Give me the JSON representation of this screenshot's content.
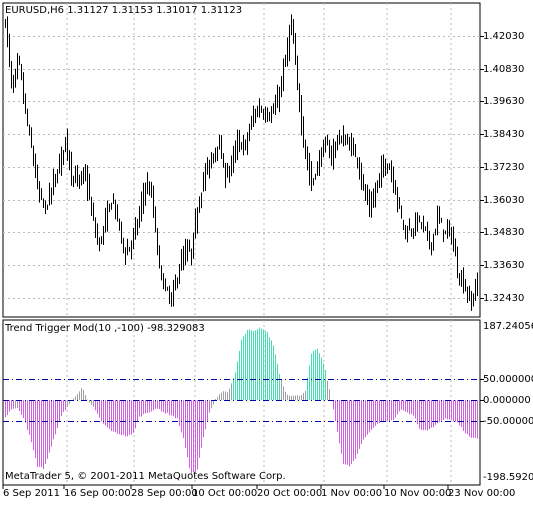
{
  "main_panel": {
    "title": "EURUSD,H6  1.31127 1.31153 1.31017 1.31123",
    "price_labels": [
      "1.42030",
      "1.40830",
      "1.39630",
      "1.38430",
      "1.37230",
      "1.36030",
      "1.34830",
      "1.33630",
      "1.32430"
    ],
    "price_range": [
      1.3173,
      1.4323
    ],
    "series_color": "#000000"
  },
  "indicator_panel": {
    "title": "Trend Trigger Mod(10 ,-100) -98.329083",
    "max_label": "187.240565",
    "level_labels": [
      "50.000000",
      "0.000000",
      "-50.000000"
    ],
    "min_label": "-198.592054",
    "range": [
      -198.592054,
      187.240565
    ],
    "levels": [
      50,
      0,
      -50
    ],
    "colors": {
      "above": "#40e0b0",
      "below": "#d060e0",
      "neutral": "#a0a0a0",
      "level_line": "#0000aa"
    }
  },
  "footer": {
    "copyright": "MetaTrader 5, © 2001-2011 MetaQuotes Software Corp."
  },
  "time_axis": {
    "labels": [
      "6 Sep 2011",
      "16 Sep 00:00",
      "28 Sep 00:00",
      "10 Oct 00:00",
      "20 Oct 00:00",
      "1 Nov 00:00",
      "10 Nov 00:00",
      "23 Nov 00:00"
    ]
  },
  "chart_data": [
    {
      "type": "ohlc",
      "title": "EURUSD,H6  1.31127 1.31153 1.31017 1.31123",
      "ylim": [
        1.3173,
        1.4323
      ],
      "y_ticks": [
        1.4203,
        1.4083,
        1.3963,
        1.3843,
        1.3723,
        1.3603,
        1.3483,
        1.3363,
        1.3243
      ],
      "x_tick_labels": [
        "6 Sep 2011",
        "16 Sep 00:00",
        "28 Sep 00:00",
        "10 Oct 00:00",
        "20 Oct 00:00",
        "1 Nov 00:00",
        "10 Nov 00:00",
        "23 Nov 00:00"
      ],
      "close_path": [
        1.426,
        1.4,
        1.412,
        1.392,
        1.378,
        1.362,
        1.357,
        1.365,
        1.372,
        1.383,
        1.369,
        1.367,
        1.37,
        1.355,
        1.343,
        1.352,
        1.361,
        1.352,
        1.34,
        1.345,
        1.353,
        1.366,
        1.362,
        1.338,
        1.327,
        1.324,
        1.334,
        1.341,
        1.341,
        1.359,
        1.37,
        1.375,
        1.382,
        1.369,
        1.373,
        1.382,
        1.379,
        1.389,
        1.394,
        1.392,
        1.391,
        1.397,
        1.41,
        1.425,
        1.4,
        1.379,
        1.366,
        1.373,
        1.381,
        1.376,
        1.383,
        1.382,
        1.38,
        1.375,
        1.362,
        1.357,
        1.367,
        1.374,
        1.371,
        1.36,
        1.349,
        1.349,
        1.353,
        1.35,
        1.343,
        1.354,
        1.348,
        1.349,
        1.334,
        1.329,
        1.322,
        1.331
      ]
    },
    {
      "type": "histogram",
      "title": "Trend Trigger Mod(10 ,-100) -98.329083",
      "ylim": [
        -198.592054,
        187.240565
      ],
      "levels": [
        50,
        0,
        -50
      ],
      "series_path": [
        -40,
        -20,
        -20,
        -45,
        -95,
        -155,
        -160,
        -120,
        -70,
        -30,
        -10,
        10,
        30,
        -5,
        -20,
        -50,
        -65,
        -75,
        -80,
        -85,
        -80,
        -40,
        -30,
        -25,
        -20,
        -30,
        -35,
        -45,
        -95,
        -170,
        -170,
        -90,
        -30,
        5,
        20,
        20,
        60,
        140,
        165,
        160,
        170,
        160,
        130,
        60,
        15,
        10,
        10,
        20,
        110,
        120,
        80,
        10,
        -70,
        -150,
        -155,
        -135,
        -95,
        -75,
        -60,
        -50,
        -50,
        -45,
        -20,
        -30,
        -35,
        -70,
        -70,
        -65,
        -50,
        -45,
        -45,
        -55,
        -75,
        -90,
        -90
      ]
    }
  ]
}
